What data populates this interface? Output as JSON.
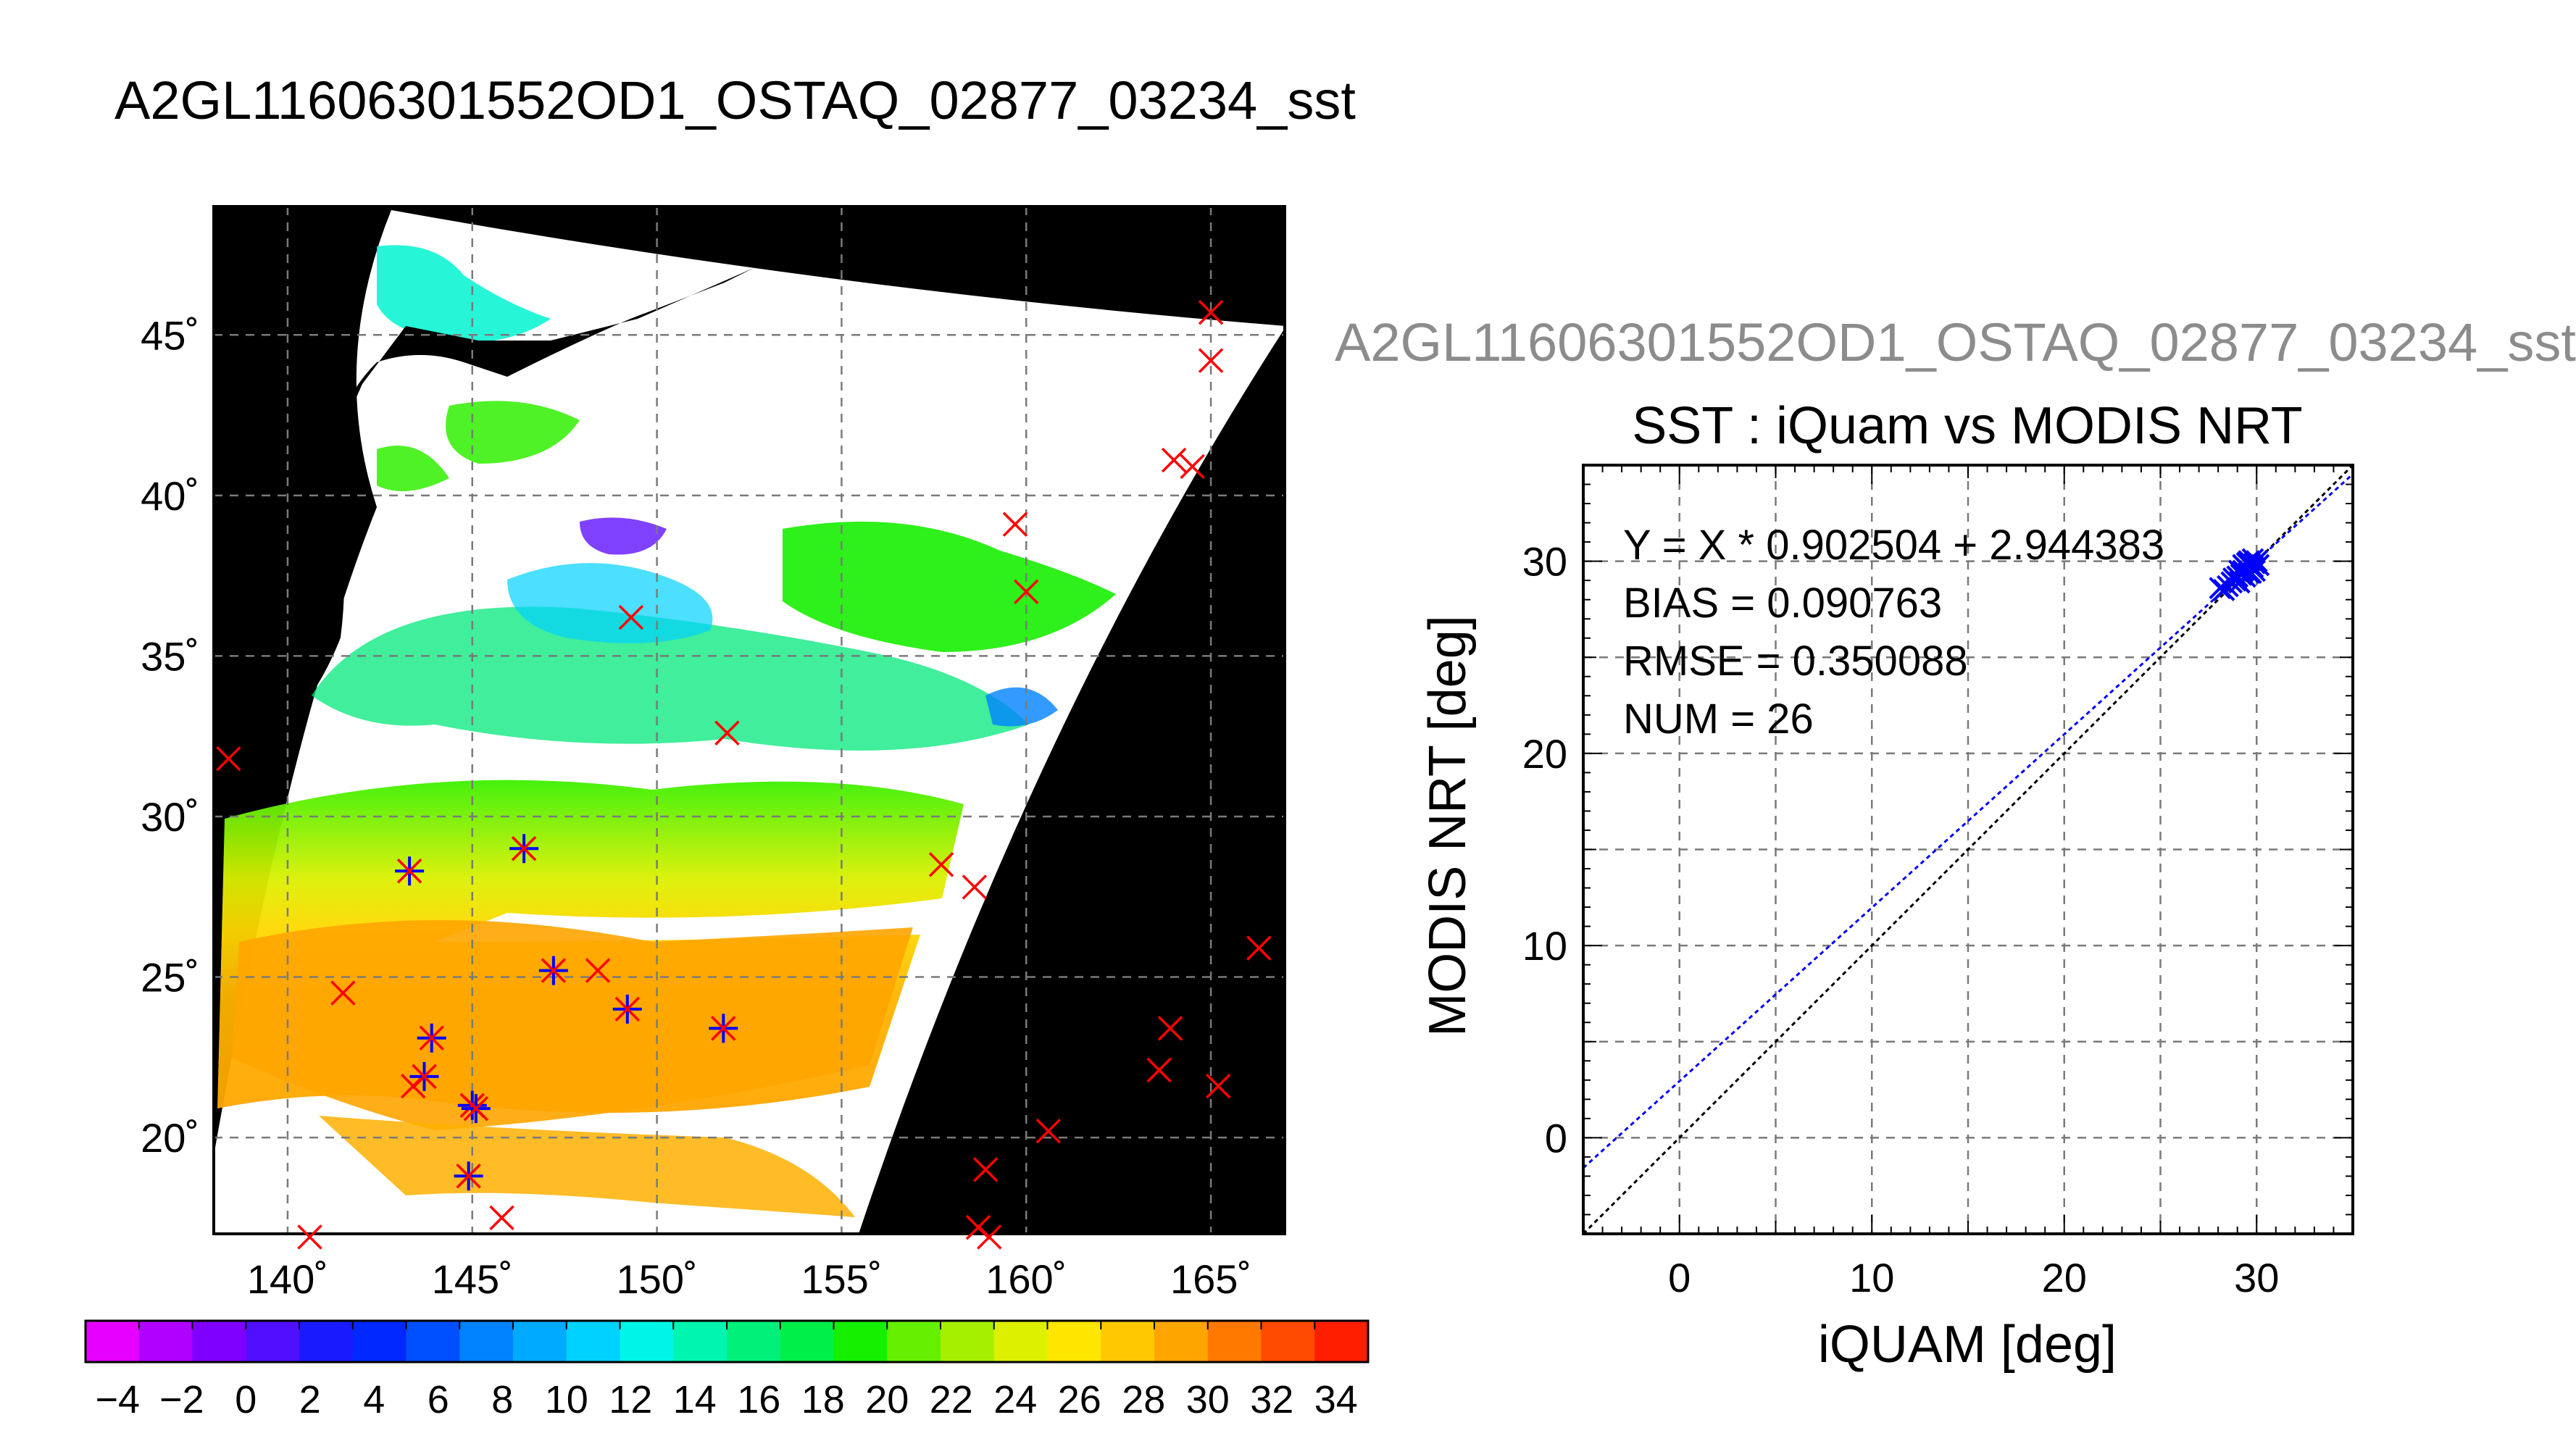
{
  "main_title": "A2GL11606301552OD1_OSTAQ_02877_03234_sst",
  "right_title": "A2GL11606301552OD1_OSTAQ_02877_03234_sst",
  "chart_data": [
    {
      "type": "map",
      "lon_ticks": [
        140,
        145,
        150,
        155,
        160,
        165
      ],
      "lon_labels": [
        "140˚",
        "145˚",
        "150˚",
        "155˚",
        "160˚",
        "165˚"
      ],
      "lat_ticks": [
        20,
        25,
        30,
        35,
        40,
        45
      ],
      "lat_labels": [
        "20˚",
        "25˚",
        "30˚",
        "35˚",
        "40˚",
        "45˚"
      ],
      "lon_range": [
        138,
        167
      ],
      "lat_range": [
        17,
        49
      ],
      "grid": true,
      "background": "#000000",
      "colorbar": {
        "min": -5,
        "max": 35,
        "tick_values": [
          -4,
          -2,
          0,
          2,
          4,
          6,
          8,
          10,
          12,
          14,
          16,
          18,
          20,
          22,
          24,
          26,
          28,
          30,
          32,
          34
        ],
        "tick_labels": [
          "−4",
          "−2",
          "0",
          "2",
          "4",
          "6",
          "8",
          "10",
          "12",
          "14",
          "16",
          "18",
          "20",
          "22",
          "24",
          "26",
          "28",
          "30",
          "32",
          "34"
        ],
        "colors": [
          "#e600ff",
          "#b000ff",
          "#8000ff",
          "#5010ff",
          "#1a1aff",
          "#0028ff",
          "#0050ff",
          "#0082ff",
          "#00aaff",
          "#00d2ff",
          "#00f5e8",
          "#00f5b0",
          "#00f07a",
          "#00f04a",
          "#14f000",
          "#64f000",
          "#a5f000",
          "#dcf000",
          "#ffe600",
          "#ffc800",
          "#ffa500",
          "#ff7800",
          "#ff4a00",
          "#ff1e00"
        ]
      },
      "matchups_star": [
        [
          143.3,
          28.3
        ],
        [
          146.4,
          29.0
        ],
        [
          147.2,
          25.2
        ],
        [
          149.2,
          24.0
        ],
        [
          151.8,
          23.4
        ],
        [
          143.9,
          23.1
        ],
        [
          143.7,
          21.9
        ],
        [
          145.0,
          21.0
        ],
        [
          145.1,
          20.9
        ],
        [
          144.9,
          18.8
        ]
      ],
      "matchups_x": [
        [
          138.4,
          31.8
        ],
        [
          141.5,
          24.5
        ],
        [
          143.4,
          21.6
        ],
        [
          145.8,
          17.5
        ],
        [
          140.6,
          16.9
        ],
        [
          148.4,
          25.2
        ],
        [
          149.3,
          36.2
        ],
        [
          151.9,
          32.6
        ],
        [
          157.7,
          28.5
        ],
        [
          158.6,
          27.8
        ],
        [
          159.7,
          39.1
        ],
        [
          160.0,
          37.0
        ],
        [
          158.9,
          19.0
        ],
        [
          158.7,
          17.2
        ],
        [
          159.0,
          16.9
        ],
        [
          160.6,
          20.2
        ],
        [
          163.6,
          22.1
        ],
        [
          163.9,
          23.4
        ],
        [
          164.0,
          41.1
        ],
        [
          164.5,
          40.9
        ],
        [
          165.0,
          44.2
        ],
        [
          165.0,
          45.7
        ],
        [
          165.2,
          21.6
        ],
        [
          166.3,
          25.9
        ]
      ]
    },
    {
      "type": "scatter",
      "title": "SST : iQuam vs MODIS NRT",
      "xlabel": "iQUAM [deg]",
      "ylabel": "MODIS NRT [deg]",
      "xlim": [
        -5,
        35
      ],
      "ylim": [
        -5,
        35
      ],
      "x_ticks": [
        0,
        10,
        20,
        30
      ],
      "y_ticks": [
        0,
        10,
        20,
        30
      ],
      "grid": true,
      "annotations": [
        "Y = X * 0.902504 + 2.944383",
        "BIAS = 0.090763",
        "RMSE = 0.350088",
        "NUM = 26"
      ],
      "fit": {
        "slope": 0.902504,
        "intercept": 2.944383
      },
      "points": [
        [
          28.1,
          28.6
        ],
        [
          28.3,
          28.5
        ],
        [
          28.5,
          28.7
        ],
        [
          28.7,
          28.9
        ],
        [
          28.9,
          29.0
        ],
        [
          29.0,
          29.2
        ],
        [
          29.1,
          28.9
        ],
        [
          29.2,
          29.3
        ],
        [
          29.3,
          29.5
        ],
        [
          29.4,
          29.2
        ],
        [
          29.5,
          29.6
        ],
        [
          29.6,
          29.4
        ],
        [
          29.7,
          29.8
        ],
        [
          29.8,
          29.7
        ],
        [
          29.9,
          29.9
        ],
        [
          30.0,
          30.0
        ],
        [
          29.5,
          29.9
        ],
        [
          29.6,
          30.0
        ],
        [
          29.8,
          30.1
        ],
        [
          29.3,
          29.8
        ],
        [
          29.1,
          29.5
        ],
        [
          28.8,
          29.1
        ],
        [
          29.9,
          29.5
        ],
        [
          30.1,
          29.8
        ],
        [
          29.7,
          29.4
        ],
        [
          29.4,
          29.7
        ]
      ],
      "point_color": "#0000ff"
    }
  ]
}
